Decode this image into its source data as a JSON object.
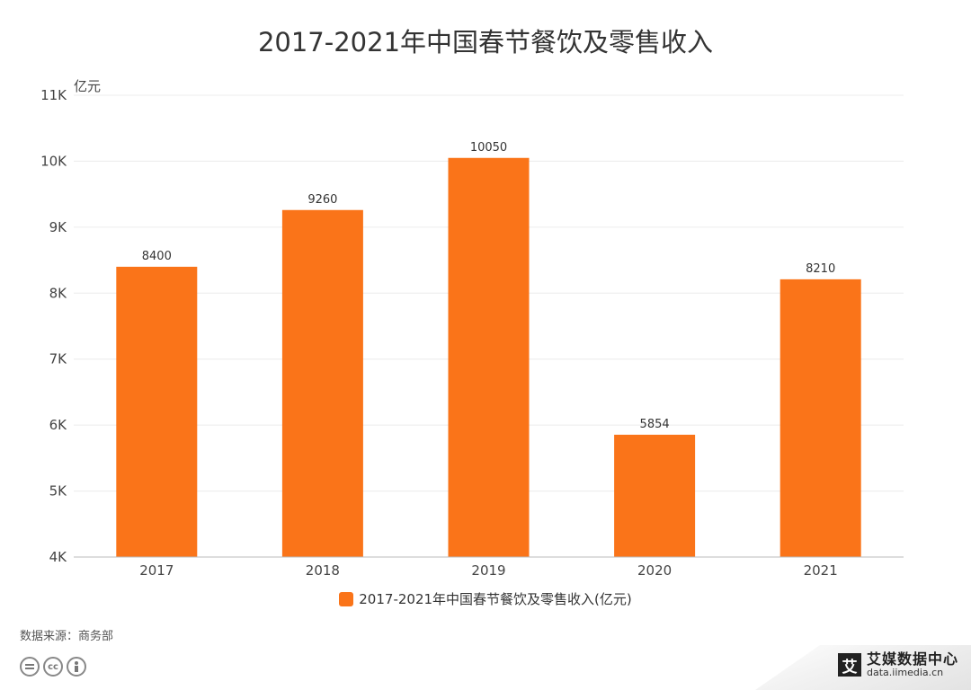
{
  "chart_data": {
    "type": "bar",
    "title": "2017-2021年中国春节餐饮及零售收入",
    "unit_label": "亿元",
    "categories": [
      "2017",
      "2018",
      "2019",
      "2020",
      "2021"
    ],
    "series": [
      {
        "name": "2017-2021年中国春节餐饮及零售收入(亿元)",
        "values": [
          8400,
          9260,
          10050,
          5854,
          8210
        ],
        "color": "#FA7419"
      }
    ],
    "ylim": [
      4000,
      11000
    ],
    "y_ticks": [
      4000,
      5000,
      6000,
      7000,
      8000,
      9000,
      10000,
      11000
    ],
    "y_tick_labels": [
      "4K",
      "5K",
      "6K",
      "7K",
      "8K",
      "9K",
      "10K",
      "11K"
    ],
    "grid": true,
    "legend_position": "bottom-center"
  },
  "footer": {
    "source": "数据来源：商务部",
    "license_icons": [
      "equals-icon",
      "cc-icon",
      "person-icon"
    ],
    "brand_mark": "艾",
    "brand_name": "艾媒数据中心",
    "brand_url": "data.iimedia.cn"
  }
}
